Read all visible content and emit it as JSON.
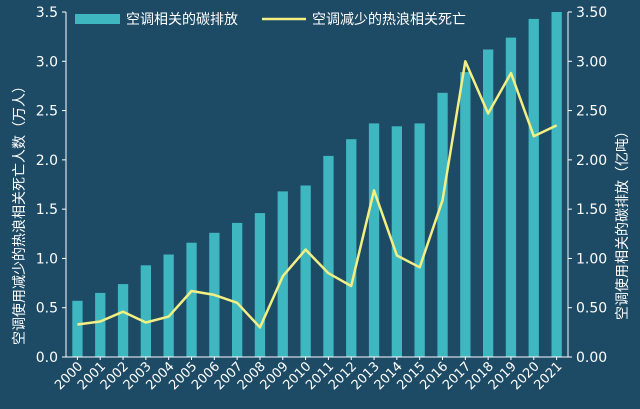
{
  "chart_data": {
    "type": "bar+line",
    "categories": [
      "2000",
      "2001",
      "2002",
      "2003",
      "2004",
      "2005",
      "2006",
      "2007",
      "2008",
      "2009",
      "2010",
      "2011",
      "2012",
      "2013",
      "2014",
      "2015",
      "2016",
      "2017",
      "2018",
      "2019",
      "2020",
      "2021"
    ],
    "series": [
      {
        "name": "空调相关的碳排放",
        "kind": "bar",
        "axis": "right",
        "color": "#3fb7c1",
        "values": [
          0.57,
          0.65,
          0.74,
          0.93,
          1.04,
          1.16,
          1.26,
          1.36,
          1.46,
          1.68,
          1.74,
          2.04,
          2.21,
          2.37,
          2.34,
          2.37,
          2.68,
          2.89,
          3.12,
          3.24,
          3.43,
          3.5
        ]
      },
      {
        "name": "空调减少的热浪相关死亡",
        "kind": "line",
        "axis": "left",
        "color": "#f3ef83",
        "values": [
          0.33,
          0.36,
          0.46,
          0.35,
          0.41,
          0.67,
          0.63,
          0.55,
          0.3,
          0.82,
          1.09,
          0.85,
          0.72,
          1.69,
          1.03,
          0.91,
          1.59,
          3.0,
          2.47,
          2.88,
          2.24,
          2.35
        ]
      }
    ],
    "ylabel": "空调使用减少的热浪相关死亡人数（万人）",
    "y2label": "空调使用相关的碳排放（亿吨）",
    "ylim": [
      0,
      3.5
    ],
    "y2lim": [
      0,
      3.5
    ],
    "yticks": [
      "0.0",
      "0.5",
      "1.0",
      "1.5",
      "2.0",
      "2.5",
      "3.0",
      "3.5"
    ],
    "y2ticks": [
      "0.00",
      "0.50",
      "1.00",
      "1.50",
      "2.00",
      "2.50",
      "3.00",
      "3.50"
    ],
    "legend_position": "top",
    "grid": false,
    "background_color": "#1d4a64",
    "text_color": "#ffffff"
  }
}
